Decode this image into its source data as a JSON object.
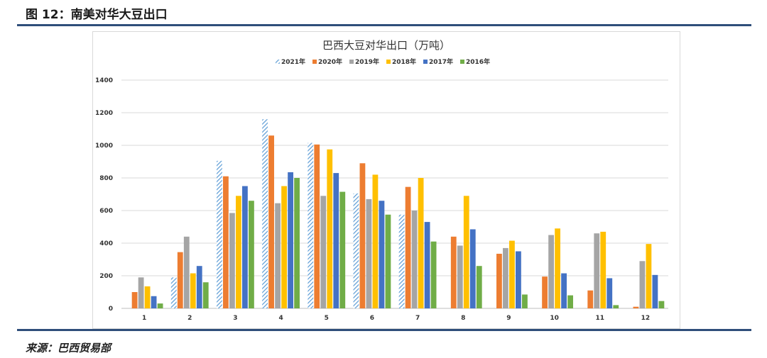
{
  "figure": {
    "label": "图 12：南美对华大豆出口",
    "source": "来源：巴西贸易部"
  },
  "chart_data": {
    "type": "bar",
    "title": "巴西大豆对华出口（万吨）",
    "xlabel": "",
    "ylabel": "",
    "categories": [
      "1",
      "2",
      "3",
      "4",
      "5",
      "6",
      "7",
      "8",
      "9",
      "10",
      "11",
      "12"
    ],
    "ylim": [
      0,
      1400
    ],
    "yticks": [
      0,
      200,
      400,
      600,
      800,
      1000,
      1200,
      1400
    ],
    "grid": true,
    "legend_position": "top",
    "series": [
      {
        "name": "2021年",
        "color": "#5b9bd5",
        "pattern": "hatch",
        "values": [
          0,
          190,
          905,
          1160,
          1015,
          705,
          575,
          null,
          null,
          null,
          null,
          null
        ]
      },
      {
        "name": "2020年",
        "color": "#ed7d31",
        "values": [
          100,
          345,
          810,
          1060,
          1005,
          890,
          745,
          440,
          335,
          195,
          110,
          10
        ]
      },
      {
        "name": "2019年",
        "color": "#a5a5a5",
        "values": [
          190,
          440,
          585,
          645,
          690,
          670,
          600,
          385,
          370,
          450,
          460,
          290
        ]
      },
      {
        "name": "2018年",
        "color": "#ffc000",
        "values": [
          135,
          215,
          690,
          750,
          975,
          820,
          800,
          690,
          415,
          490,
          470,
          395
        ]
      },
      {
        "name": "2017年",
        "color": "#4472c4",
        "values": [
          75,
          260,
          750,
          835,
          830,
          660,
          530,
          485,
          350,
          215,
          185,
          205
        ]
      },
      {
        "name": "2016年",
        "color": "#70ad47",
        "values": [
          30,
          160,
          660,
          800,
          715,
          575,
          410,
          260,
          85,
          80,
          20,
          45
        ]
      }
    ]
  }
}
